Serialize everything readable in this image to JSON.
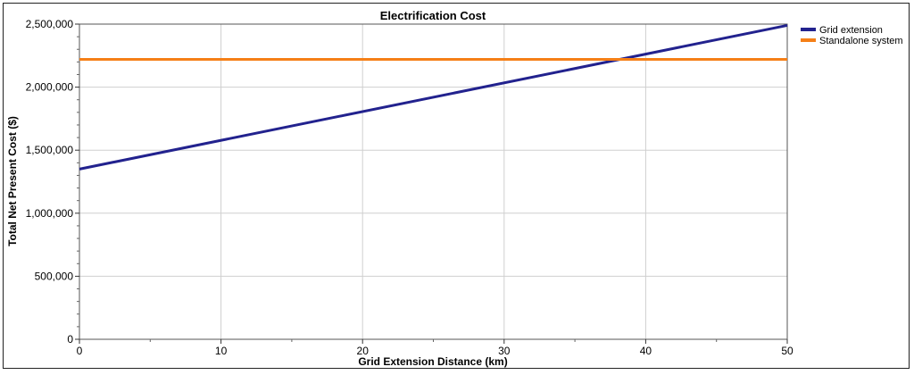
{
  "chart_data": {
    "type": "line",
    "title": "Electrification Cost",
    "xlabel": "Grid Extension Distance (km)",
    "ylabel": "Total Net Present Cost ($)",
    "xlim": [
      0,
      50
    ],
    "ylim": [
      0,
      2500000
    ],
    "x_ticks": [
      0,
      10,
      20,
      30,
      40,
      50
    ],
    "x_tick_labels": [
      "0",
      "10",
      "20",
      "30",
      "40",
      "50"
    ],
    "y_ticks": [
      0,
      500000,
      1000000,
      1500000,
      2000000,
      2500000
    ],
    "y_tick_labels": [
      "0",
      "500,000",
      "1,000,000",
      "1,500,000",
      "2,000,000",
      "2,500,000"
    ],
    "grid": true,
    "legend_position": "right",
    "series": [
      {
        "name": "Grid extension",
        "color": "#22228e",
        "x": [
          0,
          50
        ],
        "y": [
          1350000,
          2490000
        ]
      },
      {
        "name": "Standalone system",
        "color": "#f57f17",
        "x": [
          0,
          50
        ],
        "y": [
          2220000,
          2220000
        ]
      }
    ]
  }
}
